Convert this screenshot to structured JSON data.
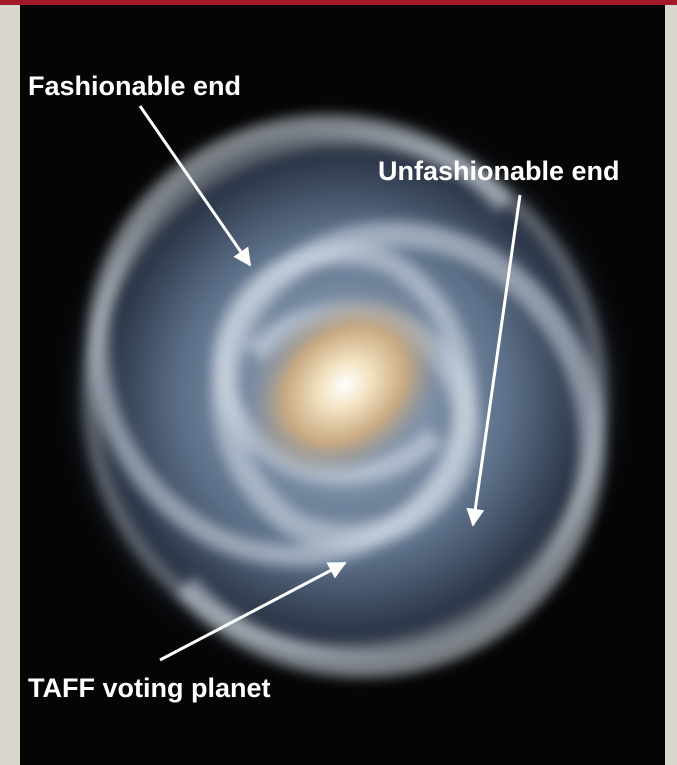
{
  "annotations": [
    {
      "label": "Fashionable end"
    },
    {
      "label": "Unfashionable end"
    },
    {
      "label": "TAFF voting planet"
    }
  ]
}
